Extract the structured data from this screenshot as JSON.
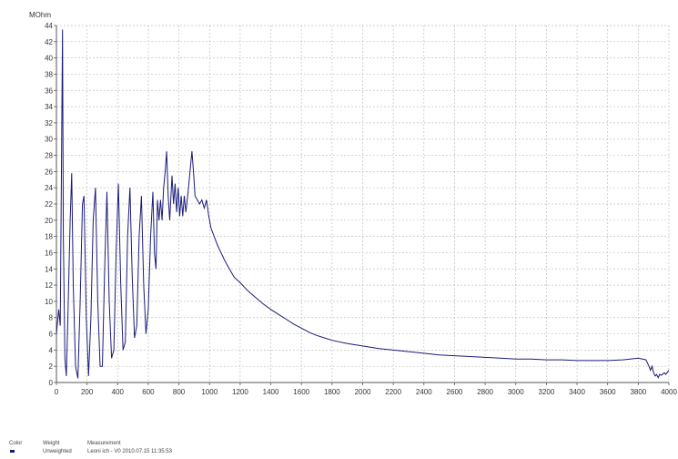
{
  "chart_data": {
    "type": "line",
    "ylabel": "MOhm",
    "xlim": [
      0,
      4000
    ],
    "ylim": [
      0,
      44
    ],
    "x_ticks": [
      0,
      200,
      400,
      600,
      800,
      1000,
      1200,
      1400,
      1600,
      1800,
      2000,
      2200,
      2400,
      2600,
      2800,
      3000,
      3200,
      3400,
      3600,
      3800,
      4000
    ],
    "y_ticks": [
      0,
      2,
      4,
      6,
      8,
      10,
      12,
      14,
      16,
      18,
      20,
      22,
      24,
      26,
      28,
      30,
      32,
      34,
      36,
      38,
      40,
      42,
      44
    ],
    "grid": true,
    "colors": {
      "line": "#1a1a7a",
      "grid": "#c0c0c0",
      "axis": "#555555"
    },
    "series": [
      {
        "name": "Leoni ich - V0 2010.07.15 11:35:53",
        "points": [
          [
            0,
            6
          ],
          [
            15,
            9
          ],
          [
            25,
            7
          ],
          [
            40,
            43.5
          ],
          [
            45,
            18
          ],
          [
            55,
            3
          ],
          [
            65,
            0.8
          ],
          [
            75,
            8
          ],
          [
            90,
            20
          ],
          [
            100,
            25.8
          ],
          [
            110,
            12
          ],
          [
            125,
            2
          ],
          [
            140,
            0.5
          ],
          [
            155,
            10
          ],
          [
            170,
            22
          ],
          [
            180,
            23
          ],
          [
            195,
            8
          ],
          [
            210,
            0.8
          ],
          [
            225,
            8
          ],
          [
            240,
            20
          ],
          [
            255,
            24
          ],
          [
            270,
            10
          ],
          [
            285,
            2
          ],
          [
            300,
            2
          ],
          [
            315,
            14
          ],
          [
            330,
            23.5
          ],
          [
            345,
            10
          ],
          [
            360,
            3
          ],
          [
            375,
            4
          ],
          [
            390,
            16
          ],
          [
            405,
            24.5
          ],
          [
            420,
            12
          ],
          [
            435,
            4
          ],
          [
            450,
            5
          ],
          [
            465,
            18
          ],
          [
            480,
            24
          ],
          [
            495,
            13
          ],
          [
            510,
            5.5
          ],
          [
            525,
            7
          ],
          [
            540,
            18
          ],
          [
            555,
            23
          ],
          [
            570,
            12
          ],
          [
            585,
            6
          ],
          [
            600,
            9
          ],
          [
            615,
            18
          ],
          [
            630,
            23.5
          ],
          [
            640,
            16
          ],
          [
            650,
            14
          ],
          [
            660,
            22.5
          ],
          [
            670,
            20
          ],
          [
            680,
            22.5
          ],
          [
            690,
            20
          ],
          [
            700,
            24
          ],
          [
            710,
            26
          ],
          [
            720,
            28.5
          ],
          [
            730,
            23
          ],
          [
            740,
            20
          ],
          [
            755,
            25.5
          ],
          [
            765,
            22
          ],
          [
            775,
            24.5
          ],
          [
            785,
            21
          ],
          [
            795,
            24
          ],
          [
            805,
            20.5
          ],
          [
            815,
            23
          ],
          [
            825,
            20.5
          ],
          [
            835,
            23
          ],
          [
            845,
            21
          ],
          [
            860,
            23.5
          ],
          [
            875,
            26.5
          ],
          [
            885,
            28.5
          ],
          [
            895,
            26
          ],
          [
            905,
            23
          ],
          [
            920,
            22.5
          ],
          [
            935,
            22
          ],
          [
            950,
            22.5
          ],
          [
            965,
            21.5
          ],
          [
            980,
            22.5
          ],
          [
            995,
            20.5
          ],
          [
            1010,
            19
          ],
          [
            1030,
            18
          ],
          [
            1050,
            17
          ],
          [
            1070,
            16.2
          ],
          [
            1100,
            15
          ],
          [
            1130,
            14
          ],
          [
            1160,
            13
          ],
          [
            1200,
            12.3
          ],
          [
            1250,
            11.3
          ],
          [
            1300,
            10.5
          ],
          [
            1350,
            9.7
          ],
          [
            1400,
            9
          ],
          [
            1450,
            8.4
          ],
          [
            1500,
            7.8
          ],
          [
            1550,
            7.2
          ],
          [
            1600,
            6.7
          ],
          [
            1650,
            6.2
          ],
          [
            1700,
            5.8
          ],
          [
            1750,
            5.5
          ],
          [
            1800,
            5.2
          ],
          [
            1900,
            4.8
          ],
          [
            2000,
            4.5
          ],
          [
            2100,
            4.2
          ],
          [
            2200,
            4
          ],
          [
            2300,
            3.8
          ],
          [
            2400,
            3.6
          ],
          [
            2500,
            3.4
          ],
          [
            2600,
            3.3
          ],
          [
            2700,
            3.2
          ],
          [
            2800,
            3.1
          ],
          [
            2900,
            3
          ],
          [
            3000,
            2.9
          ],
          [
            3100,
            2.9
          ],
          [
            3200,
            2.8
          ],
          [
            3300,
            2.8
          ],
          [
            3400,
            2.7
          ],
          [
            3500,
            2.7
          ],
          [
            3600,
            2.7
          ],
          [
            3700,
            2.8
          ],
          [
            3800,
            3
          ],
          [
            3850,
            2.8
          ],
          [
            3870,
            2
          ],
          [
            3880,
            1.5
          ],
          [
            3890,
            2
          ],
          [
            3900,
            1.2
          ],
          [
            3910,
            0.8
          ],
          [
            3920,
            1
          ],
          [
            3930,
            0.6
          ],
          [
            3940,
            1
          ],
          [
            3950,
            0.9
          ],
          [
            3970,
            1.2
          ],
          [
            3980,
            1
          ],
          [
            4000,
            1.5
          ]
        ]
      }
    ],
    "legend": {
      "headers": [
        "Color",
        "Weight",
        "Measurement"
      ],
      "rows": [
        {
          "weight": "Unweighted",
          "measurement": "Leoni ich - V0 2010.07.15 11:35:53"
        }
      ]
    }
  }
}
